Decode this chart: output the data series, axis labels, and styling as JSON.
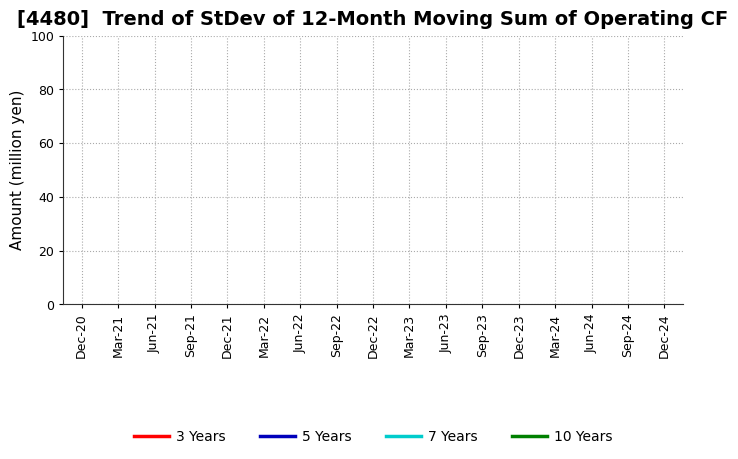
{
  "title": "[4480]  Trend of StDev of 12-Month Moving Sum of Operating CF",
  "ylabel": "Amount (million yen)",
  "ylim": [
    0,
    100
  ],
  "yticks": [
    0,
    20,
    40,
    60,
    80,
    100
  ],
  "x_labels": [
    "Dec-20",
    "Mar-21",
    "Jun-21",
    "Sep-21",
    "Dec-21",
    "Mar-22",
    "Jun-22",
    "Sep-22",
    "Dec-22",
    "Mar-23",
    "Jun-23",
    "Sep-23",
    "Dec-23",
    "Mar-24",
    "Jun-24",
    "Sep-24",
    "Dec-24"
  ],
  "legend_entries": [
    {
      "label": "3 Years",
      "color": "#ff0000"
    },
    {
      "label": "5 Years",
      "color": "#0000bb"
    },
    {
      "label": "7 Years",
      "color": "#00cccc"
    },
    {
      "label": "10 Years",
      "color": "#008000"
    }
  ],
  "background_color": "#ffffff",
  "grid_color": "#aaaaaa",
  "title_fontsize": 14,
  "axis_label_fontsize": 11,
  "tick_fontsize": 9,
  "legend_fontsize": 10
}
